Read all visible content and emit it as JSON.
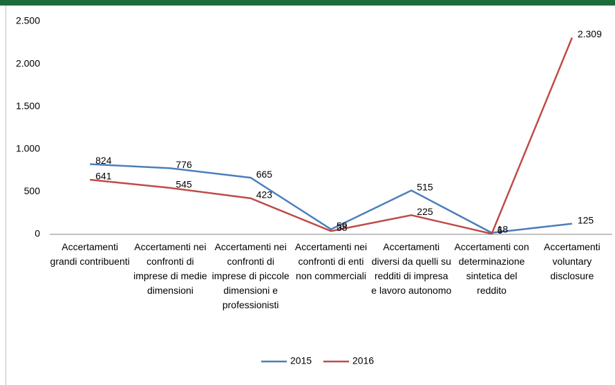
{
  "chart_data": {
    "type": "line",
    "categories": [
      "Accertamenti grandi contribuenti",
      "Accertamenti nei confronti di imprese di medie dimensioni",
      "Accertamenti nei confronti di imprese di piccole dimensioni e professionisti",
      "Accertamenti nei confronti di enti non commerciali",
      "Accertamenti diversi da quelli su redditi di impresa e lavoro autonomo",
      "Accertamenti con determinazione sintetica del reddito",
      "Accertamenti voluntary disclosure"
    ],
    "series": [
      {
        "name": "2015",
        "color": "#4a7ebb",
        "values": [
          824,
          776,
          665,
          59,
          515,
          18,
          125
        ]
      },
      {
        "name": "2016",
        "color": "#be4b48",
        "values": [
          641,
          545,
          423,
          38,
          225,
          6,
          2309
        ],
        "value_labels": [
          "641",
          "545",
          "423",
          "38",
          "225",
          "6",
          "2.309"
        ]
      }
    ],
    "ylim": [
      0,
      2500
    ],
    "yticks": [
      0,
      500,
      {
        "value": 1000,
        "label": "1.000"
      },
      {
        "value": 1500,
        "label": "1.500"
      },
      {
        "value": 2000,
        "label": "2.000"
      },
      {
        "value": 2500,
        "label": "2.500"
      }
    ],
    "legend": "bottom"
  }
}
